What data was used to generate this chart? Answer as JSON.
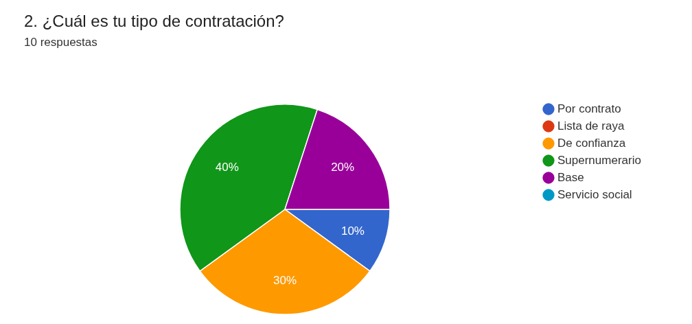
{
  "chart_data": {
    "type": "pie",
    "title": "2. ¿Cuál es tu tipo de contratación?",
    "subtitle": "10 respuestas",
    "categories": [
      "Por contrato",
      "Lista de raya",
      "De confianza",
      "Supernumerario",
      "Base",
      "Servicio social"
    ],
    "values": [
      10,
      0,
      30,
      40,
      20,
      0
    ],
    "colors": [
      "#3366cc",
      "#dc3912",
      "#ff9900",
      "#109618",
      "#990099",
      "#0099c6"
    ],
    "value_labels": [
      "10%",
      null,
      "30%",
      "40%",
      "20%",
      null
    ],
    "legend": "right"
  }
}
